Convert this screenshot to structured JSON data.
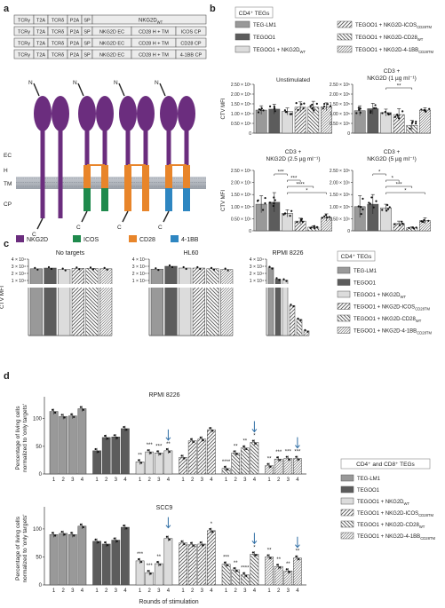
{
  "panels": {
    "a": "a",
    "b": "b",
    "c": "c",
    "d": "d"
  },
  "panel_a": {
    "constructs": [
      [
        "TCRγ",
        "T2A",
        "TCRδ",
        "P2A",
        "SP",
        "NKG2D",
        "WT"
      ],
      [
        "TCRγ",
        "T2A",
        "TCRδ",
        "P2A",
        "SP",
        "NKG2D EC",
        "CD28 H + TM",
        "ICOS CP"
      ],
      [
        "TCRγ",
        "T2A",
        "TCRδ",
        "P2A",
        "SP",
        "NKG2D EC",
        "CD28 H + TM",
        "CD28 CP"
      ],
      [
        "TCRγ",
        "T2A",
        "TCRδ",
        "P2A",
        "SP",
        "NKG2D EC",
        "CD28 H + TM",
        "4-1BB CP"
      ]
    ],
    "domain_labels": [
      "EC",
      "H",
      "TM",
      "CP"
    ],
    "terminus": {
      "n": "N",
      "c": "C"
    },
    "legend": [
      {
        "label": "NKG2D",
        "color": "#6b2d7e"
      },
      {
        "label": "ICOS",
        "color": "#1f8a4c"
      },
      {
        "label": "CD28",
        "color": "#e8852a"
      },
      {
        "label": "4-1BB",
        "color": "#2e86c1"
      }
    ]
  },
  "groups": [
    "TEG-LM1",
    "TEGOO1",
    "TEGOO1 + NKG2D",
    "TEGOO1 + NKG2D-ICOS",
    "TEGOO1 + NKG2D-CD28",
    "TEGOO1 + NKG2D-4-1BB"
  ],
  "group_subscripts": [
    "",
    "",
    "WT",
    "CD28TM",
    "WT",
    "CD28TM"
  ],
  "legend_titles": {
    "b": "CD4⁺ TEGs",
    "c": "CD4⁺ TEGs",
    "d": "CD4⁺ and CD8⁺ TEGs"
  },
  "chart_data": [
    {
      "type": "bar",
      "panel": "b",
      "title": "Unstimulated",
      "ylabel": "CTV MFI",
      "ylim": [
        0,
        250000
      ],
      "yticks": [
        "0",
        "0.50 × 10⁵",
        "1.00 × 10⁵",
        "1.50 × 10⁵",
        "2.00 × 10⁵",
        "2.50 × 10⁵"
      ],
      "categories": [
        "TEG-LM1",
        "TEGOO1",
        "TEGOO1 + NKG2D WT",
        "TEGOO1 + NKG2D-ICOS CD28TM",
        "TEGOO1 + NKG2D-CD28 WT",
        "TEGOO1 + NKG2D-4-1BB CD28TM"
      ],
      "values": [
        118000,
        123000,
        111000,
        133000,
        133000,
        135000
      ],
      "errors": [
        22000,
        25000,
        18000,
        27000,
        30000,
        20000
      ],
      "significance": []
    },
    {
      "type": "bar",
      "panel": "b",
      "title": "CD3 + NKG2D (1 µg ml⁻¹)",
      "ylabel": "",
      "ylim": [
        0,
        250000
      ],
      "yticks": [
        "0",
        "0.50 × 10⁵",
        "1.00 × 10⁵",
        "1.50 × 10⁵",
        "2.00 × 10⁵",
        "2.50 × 10⁵"
      ],
      "categories": [
        "TEG-LM1",
        "TEGOO1",
        "TEGOO1 + NKG2D WT",
        "TEGOO1 + NKG2D-ICOS CD28TM",
        "TEGOO1 + NKG2D-CD28 WT",
        "TEGOO1 + NKG2D-4-1BB CD28TM"
      ],
      "values": [
        115000,
        125000,
        105000,
        95000,
        40000,
        118000
      ],
      "errors": [
        25000,
        28000,
        18000,
        30000,
        25000,
        12000
      ],
      "significance": [
        {
          "from": 2,
          "to": 4,
          "label": "**"
        }
      ]
    },
    {
      "type": "bar",
      "panel": "b",
      "title": "CD3 + NKG2D (2.5 µg ml⁻¹)",
      "ylabel": "CTV MFI",
      "ylim": [
        0,
        250000
      ],
      "yticks": [
        "0",
        "0.50 × 10⁵",
        "1.00 × 10⁵",
        "1.50 × 10⁵",
        "2.00 × 10⁵",
        "2.50 × 10⁵"
      ],
      "categories": [
        "TEG-LM1",
        "TEGOO1",
        "TEGOO1 + NKG2D WT",
        "TEGOO1 + NKG2D-ICOS CD28TM",
        "TEGOO1 + NKG2D-CD28 WT",
        "TEGOO1 + NKG2D-4-1BB CD28TM"
      ],
      "values": [
        110000,
        118000,
        72000,
        40000,
        15000,
        55000
      ],
      "errors": [
        35000,
        40000,
        15000,
        12000,
        6000,
        15000
      ],
      "significance": [
        {
          "from": 1,
          "to": 2,
          "label": "***"
        },
        {
          "from": 2,
          "to": 3,
          "label": "***"
        },
        {
          "from": 2,
          "to": 4,
          "label": "****"
        },
        {
          "from": 2,
          "to": 5,
          "label": "*"
        }
      ]
    },
    {
      "type": "bar",
      "panel": "b",
      "title": "CD3 + NKG2D (5 µg ml⁻¹)",
      "ylabel": "",
      "ylim": [
        0,
        250000
      ],
      "yticks": [
        "0",
        "0.50 × 10⁵",
        "1.00 × 10⁵",
        "1.50 × 10⁵",
        "2.00 × 10⁵",
        "2.50 × 10⁵"
      ],
      "categories": [
        "TEG-LM1",
        "TEGOO1",
        "TEGOO1 + NKG2D WT",
        "TEGOO1 + NKG2D-ICOS CD28TM",
        "TEGOO1 + NKG2D-CD28 WT",
        "TEGOO1 + NKG2D-4-1BB CD28TM"
      ],
      "values": [
        100000,
        110000,
        95000,
        30000,
        12000,
        42000
      ],
      "errors": [
        45000,
        40000,
        15000,
        10000,
        4000,
        12000
      ],
      "significance": [
        {
          "from": 1,
          "to": 2,
          "label": "*"
        },
        {
          "from": 2,
          "to": 3,
          "label": "*"
        },
        {
          "from": 2,
          "to": 4,
          "label": "***"
        },
        {
          "from": 2,
          "to": 5,
          "label": "*"
        }
      ]
    },
    {
      "type": "bar",
      "panel": "c",
      "title": "No targets",
      "ylabel": "CTV MFI",
      "ylim": [
        0,
        40000
      ],
      "yticks": [
        "1 × 10⁴",
        "2 × 10⁴",
        "3 × 10⁴",
        "4 × 10⁴"
      ],
      "categories": [
        "TEG-LM1",
        "TEGOO1",
        "TEGOO1 + NKG2D WT",
        "TEGOO1 + NKG2D-ICOS CD28TM",
        "TEGOO1 + NKG2D-CD28 WT",
        "TEGOO1 + NKG2D-4-1BB CD28TM"
      ],
      "values": [
        26500,
        27500,
        25500,
        27000,
        27000,
        26500
      ]
    },
    {
      "type": "bar",
      "panel": "c",
      "title": "HL60",
      "ylabel": "",
      "ylim": [
        0,
        40000
      ],
      "yticks": [
        "1 × 10⁴",
        "2 × 10⁴",
        "3 × 10⁴",
        "4 × 10⁴"
      ],
      "categories": [
        "TEG-LM1",
        "TEGOO1",
        "TEGOO1 + NKG2D WT",
        "TEGOO1 + NKG2D-ICOS CD28TM",
        "TEGOO1 + NKG2D-CD28 WT",
        "TEGOO1 + NKG2D-4-1BB CD28TM"
      ],
      "values": [
        26000,
        30000,
        27500,
        27500,
        26500,
        25500
      ]
    },
    {
      "type": "bar",
      "panel": "c",
      "title": "RPMI 8226",
      "ylabel": "",
      "ylim": [
        0,
        40000
      ],
      "yticks": [
        "1 × 10⁴",
        "2 × 10⁴",
        "3 × 10⁴",
        "4 × 10⁴"
      ],
      "categories": [
        "TEG-LM1",
        "TEGOO1",
        "TEGOO1 + NKG2D WT",
        "TEGOO1 + NKG2D-ICOS CD28TM",
        "TEGOO1 + NKG2D-CD28 WT",
        "TEGOO1 + NKG2D-4-1BB CD28TM"
      ],
      "values": [
        28000,
        12000,
        10500,
        6500,
        3500,
        1000
      ]
    },
    {
      "type": "bar",
      "panel": "d",
      "title": "RPMI 8226",
      "ylabel": "Percentage of living cells normalized to 'only targets'",
      "xlabel": "Rounds of stimulation",
      "ylim": [
        0,
        130
      ],
      "yticks": [
        "0",
        "50",
        "100"
      ],
      "x": [
        "1",
        "2",
        "3",
        "4"
      ],
      "series": [
        {
          "name": "TEG-LM1",
          "values": [
            113,
            104,
            105,
            118
          ],
          "significance": [
            "",
            "",
            "",
            ""
          ]
        },
        {
          "name": "TEGOO1",
          "values": [
            42,
            66,
            67,
            82
          ],
          "significance": [
            "",
            "",
            "",
            ""
          ]
        },
        {
          "name": "TEGOO1 + NKG2D WT",
          "values": [
            22,
            40,
            38,
            42
          ],
          "significance": [
            "**",
            "***",
            "***",
            "**"
          ]
        },
        {
          "name": "TEGOO1 + NKG2D-ICOS CD28TM",
          "values": [
            30,
            60,
            63,
            80
          ],
          "significance": [
            "",
            "",
            "",
            ""
          ]
        },
        {
          "name": "TEGOO1 + NKG2D-CD28 WT",
          "values": [
            10,
            38,
            47,
            57
          ],
          "significance": [
            "****",
            "**",
            "**",
            "*"
          ]
        },
        {
          "name": "TEGOO1 + NKG2D-4-1BB CD28TM",
          "values": [
            15,
            27,
            28,
            28
          ],
          "significance": [
            "**",
            "***",
            "***",
            "***"
          ]
        }
      ],
      "arrow_rounds": [
        [],
        [],
        [
          4
        ],
        [],
        [
          4
        ],
        [
          4
        ]
      ]
    },
    {
      "type": "bar",
      "panel": "d",
      "title": "SCC9",
      "ylabel": "Percentage of living cells normalized to 'only targets'",
      "xlabel": "Rounds of stimulation",
      "ylim": [
        0,
        130
      ],
      "yticks": [
        "0",
        "50",
        "100"
      ],
      "x": [
        "1",
        "2",
        "3",
        "4"
      ],
      "series": [
        {
          "name": "TEG-LM1",
          "values": [
            90,
            92,
            90,
            105
          ],
          "significance": [
            "",
            "",
            "",
            ""
          ]
        },
        {
          "name": "TEGOO1",
          "values": [
            78,
            73,
            80,
            103
          ],
          "significance": [
            "",
            "",
            "",
            ""
          ]
        },
        {
          "name": "TEGOO1 + NKG2D WT",
          "values": [
            43,
            22,
            38,
            83
          ],
          "significance": [
            "***",
            "***",
            "**",
            ""
          ]
        },
        {
          "name": "TEGOO1 + NKG2D-ICOS CD28TM",
          "values": [
            75,
            72,
            73,
            97
          ],
          "significance": [
            "",
            "",
            "",
            "*"
          ]
        },
        {
          "name": "TEGOO1 + NKG2D-CD28 WT",
          "values": [
            37,
            27,
            18,
            55
          ],
          "significance": [
            "***",
            "**",
            "****",
            "*"
          ]
        },
        {
          "name": "TEGOO1 + NKG2D-4-1BB CD28TM",
          "values": [
            50,
            33,
            25,
            48
          ],
          "significance": [
            "**",
            "**",
            "**",
            "**"
          ]
        }
      ],
      "arrow_rounds": [
        [],
        [],
        [
          4
        ],
        [],
        [
          4
        ],
        [
          4
        ]
      ]
    }
  ]
}
